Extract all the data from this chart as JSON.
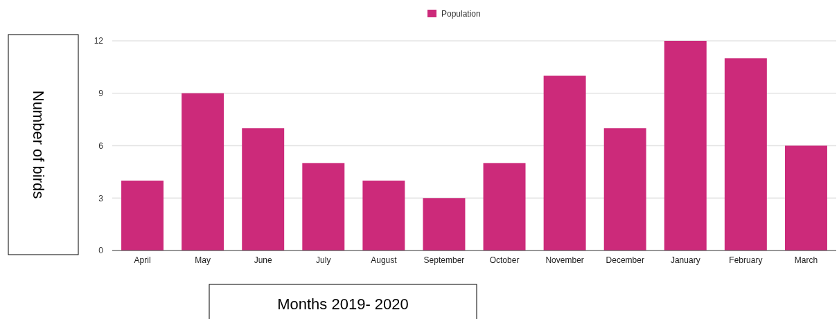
{
  "chart_data": {
    "type": "bar",
    "xlabel": "Months 2019- 2020",
    "ylabel": "Number of birds",
    "categories": [
      "April",
      "May",
      "June",
      "July",
      "August",
      "September",
      "October",
      "November",
      "December",
      "January",
      "February",
      "March"
    ],
    "series": [
      {
        "name": "Population",
        "color": "#cc2a7a",
        "values": [
          4,
          9,
          7,
          5,
          4,
          3,
          5,
          10,
          7,
          12,
          11,
          6
        ]
      }
    ],
    "ylim": [
      0,
      12
    ],
    "yticks": [
      0,
      3,
      6,
      9,
      12
    ],
    "grid": "y",
    "legend": "top"
  }
}
